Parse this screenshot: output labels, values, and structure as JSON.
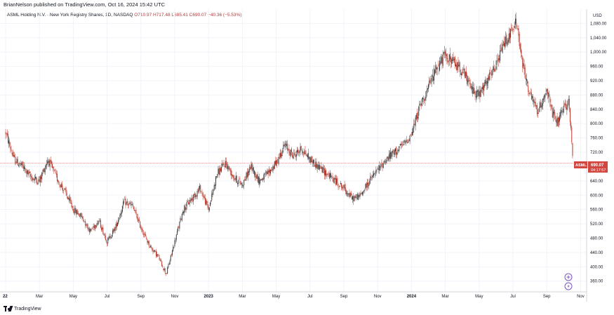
{
  "header": {
    "publisher_line": "BrianNelson published on TradingView.com, Oct 16, 2024 15:42 UTC"
  },
  "legend": {
    "symbol": "ASML Holding N.V. · New York Registry Shares, 1D, NASDAQ",
    "ohlc": "O710.97 H717.48 L685.41 C690.07 −40.36 (−5.53%)"
  },
  "footer": {
    "brand": "TradingView"
  },
  "price_tag": {
    "ticker": "ASML",
    "price": "690.07",
    "countdown": "04:17:57"
  },
  "colors": {
    "up": "#3d3d3d",
    "down": "#c0392b",
    "grid": "#f0f3fa",
    "price_tag": "#d2463f"
  },
  "icons": [
    "plus-circle-icon",
    "lightning-circle-icon"
  ],
  "chart_data": {
    "type": "candlestick",
    "currency": "USD",
    "ylim": [
      330,
      1120
    ],
    "y_ticks": [
      "360.00",
      "400.00",
      "440.00",
      "480.00",
      "520.00",
      "560.00",
      "600.00",
      "640.00",
      "680.00",
      "720.00",
      "760.00",
      "800.00",
      "840.00",
      "880.00",
      "920.00",
      "960.00",
      "1,000.00",
      "1,040.00",
      "1,080.00"
    ],
    "y_tick_values": [
      360,
      400,
      440,
      480,
      520,
      560,
      600,
      640,
      680,
      720,
      760,
      800,
      840,
      880,
      920,
      960,
      1000,
      1040,
      1080
    ],
    "x_ticks": [
      {
        "label": "22",
        "bold": true,
        "m": 0
      },
      {
        "label": "Mar",
        "m": 2
      },
      {
        "label": "May",
        "m": 4
      },
      {
        "label": "Jul",
        "m": 6
      },
      {
        "label": "Sep",
        "m": 8
      },
      {
        "label": "Nov",
        "m": 10
      },
      {
        "label": "2023",
        "bold": true,
        "m": 12
      },
      {
        "label": "Mar",
        "m": 14
      },
      {
        "label": "May",
        "m": 16
      },
      {
        "label": "Jul",
        "m": 18
      },
      {
        "label": "Sep",
        "m": 20
      },
      {
        "label": "Nov",
        "m": 22
      },
      {
        "label": "2024",
        "bold": true,
        "m": 24
      },
      {
        "label": "Mar",
        "m": 26
      },
      {
        "label": "May",
        "m": 28
      },
      {
        "label": "Jul",
        "m": 30
      },
      {
        "label": "Sep",
        "m": 32
      },
      {
        "label": "Nov",
        "m": 34
      }
    ],
    "price_line": 690.07,
    "series_monthly_close_approx": [
      {
        "m": 0,
        "close": 775
      },
      {
        "m": 0.5,
        "close": 700
      },
      {
        "m": 1,
        "close": 680
      },
      {
        "m": 1.5,
        "close": 650
      },
      {
        "m": 2,
        "close": 640
      },
      {
        "m": 2.5,
        "close": 700
      },
      {
        "m": 3,
        "close": 650
      },
      {
        "m": 3.5,
        "close": 610
      },
      {
        "m": 4,
        "close": 560
      },
      {
        "m": 4.5,
        "close": 540
      },
      {
        "m": 5,
        "close": 500
      },
      {
        "m": 5.5,
        "close": 530
      },
      {
        "m": 6,
        "close": 470
      },
      {
        "m": 6.5,
        "close": 510
      },
      {
        "m": 7,
        "close": 580
      },
      {
        "m": 7.5,
        "close": 570
      },
      {
        "m": 8,
        "close": 510
      },
      {
        "m": 8.5,
        "close": 460
      },
      {
        "m": 9,
        "close": 430
      },
      {
        "m": 9.5,
        "close": 380
      },
      {
        "m": 10,
        "close": 470
      },
      {
        "m": 10.5,
        "close": 560
      },
      {
        "m": 11,
        "close": 590
      },
      {
        "m": 11.5,
        "close": 620
      },
      {
        "m": 12,
        "close": 560
      },
      {
        "m": 12.5,
        "close": 660
      },
      {
        "m": 13,
        "close": 690
      },
      {
        "m": 13.5,
        "close": 650
      },
      {
        "m": 14,
        "close": 630
      },
      {
        "m": 14.5,
        "close": 680
      },
      {
        "m": 15,
        "close": 640
      },
      {
        "m": 15.5,
        "close": 660
      },
      {
        "m": 16,
        "close": 690
      },
      {
        "m": 16.5,
        "close": 740
      },
      {
        "m": 17,
        "close": 710
      },
      {
        "m": 17.5,
        "close": 730
      },
      {
        "m": 18,
        "close": 700
      },
      {
        "m": 18.5,
        "close": 680
      },
      {
        "m": 19,
        "close": 660
      },
      {
        "m": 19.5,
        "close": 640
      },
      {
        "m": 20,
        "close": 620
      },
      {
        "m": 20.5,
        "close": 590
      },
      {
        "m": 21,
        "close": 600
      },
      {
        "m": 21.5,
        "close": 640
      },
      {
        "m": 22,
        "close": 670
      },
      {
        "m": 22.5,
        "close": 700
      },
      {
        "m": 23,
        "close": 720
      },
      {
        "m": 23.5,
        "close": 740
      },
      {
        "m": 24,
        "close": 770
      },
      {
        "m": 24.5,
        "close": 850
      },
      {
        "m": 25,
        "close": 900
      },
      {
        "m": 25.5,
        "close": 960
      },
      {
        "m": 26,
        "close": 990
      },
      {
        "m": 26.5,
        "close": 970
      },
      {
        "m": 27,
        "close": 950
      },
      {
        "m": 27.5,
        "close": 900
      },
      {
        "m": 28,
        "close": 880
      },
      {
        "m": 28.5,
        "close": 920
      },
      {
        "m": 29,
        "close": 960
      },
      {
        "m": 29.5,
        "close": 1030
      },
      {
        "m": 30,
        "close": 1060
      },
      {
        "m": 30.2,
        "close": 1090
      },
      {
        "m": 30.5,
        "close": 980
      },
      {
        "m": 31,
        "close": 880
      },
      {
        "m": 31.5,
        "close": 830
      },
      {
        "m": 32,
        "close": 900
      },
      {
        "m": 32.3,
        "close": 830
      },
      {
        "m": 32.6,
        "close": 800
      },
      {
        "m": 33,
        "close": 840
      },
      {
        "m": 33.3,
        "close": 865
      },
      {
        "m": 33.5,
        "close": 730
      },
      {
        "m": 33.55,
        "close": 690
      }
    ]
  }
}
